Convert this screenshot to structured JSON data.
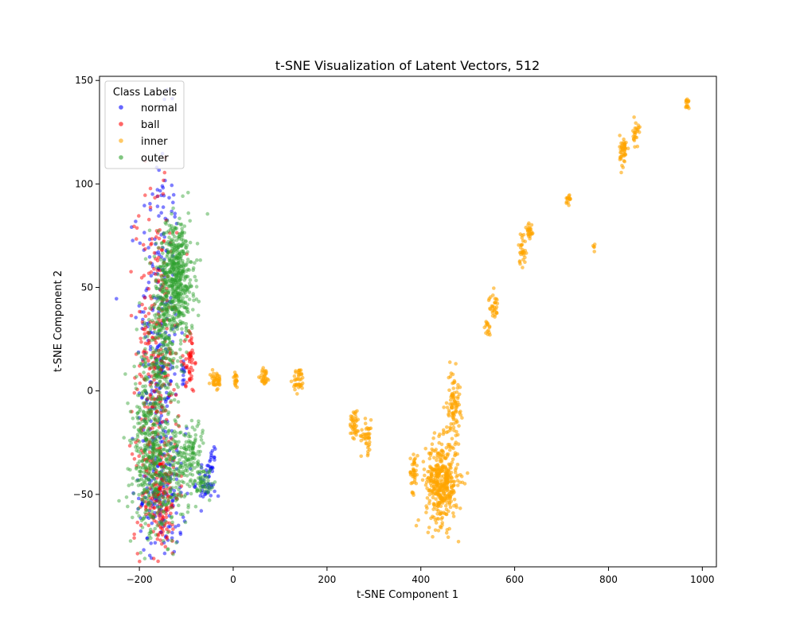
{
  "chart_data": {
    "type": "scatter",
    "title": "t-SNE Visualization of Latent Vectors, 512",
    "xlabel": "t-SNE Component 1",
    "ylabel": "t-SNE Component 2",
    "xlim": [
      -285,
      1030
    ],
    "ylim": [
      -85,
      152
    ],
    "x_ticks": [
      -200,
      0,
      200,
      400,
      600,
      800,
      1000
    ],
    "y_ticks": [
      -50,
      0,
      50,
      100,
      150
    ],
    "grid": false,
    "legend": {
      "title": "Class Labels",
      "placement": "top-left",
      "entries": [
        "normal",
        "ball",
        "inner",
        "outer"
      ]
    },
    "series": [
      {
        "name": "normal",
        "color": "#0000ff",
        "alpha": 0.5,
        "clusters": [
          {
            "x": -160,
            "y": 20,
            "sx": 22,
            "sy": 52,
            "n": 260
          },
          {
            "x": -150,
            "y": -50,
            "sx": 25,
            "sy": 15,
            "n": 130
          },
          {
            "x": -60,
            "y": -44,
            "sx": 10,
            "sy": 6,
            "n": 40
          },
          {
            "x": -45,
            "y": -38,
            "sx": 3,
            "sy": 5,
            "n": 20
          },
          {
            "x": -105,
            "y": 8,
            "sx": 3,
            "sy": 3,
            "n": 12
          },
          {
            "x": -150,
            "y": 11,
            "sx": 4,
            "sy": 2,
            "n": 10
          }
        ]
      },
      {
        "name": "ball",
        "color": "#ff0000",
        "alpha": 0.5,
        "clusters": [
          {
            "x": -165,
            "y": 10,
            "sx": 22,
            "sy": 42,
            "n": 320
          },
          {
            "x": -155,
            "y": -50,
            "sx": 20,
            "sy": 14,
            "n": 150
          },
          {
            "x": -92,
            "y": 15,
            "sx": 5,
            "sy": 8,
            "n": 50
          }
        ]
      },
      {
        "name": "inner",
        "color": "#ffa500",
        "alpha": 0.6,
        "clusters": [
          {
            "x": -37,
            "y": 5,
            "sx": 6,
            "sy": 2.5,
            "n": 40
          },
          {
            "x": 5,
            "y": 5,
            "sx": 3,
            "sy": 2,
            "n": 20
          },
          {
            "x": 67,
            "y": 7,
            "sx": 5,
            "sy": 2,
            "n": 30
          },
          {
            "x": 140,
            "y": 5,
            "sx": 6,
            "sy": 3,
            "n": 40
          },
          {
            "x": 258,
            "y": -15,
            "sx": 5,
            "sy": 4,
            "n": 40
          },
          {
            "x": 285,
            "y": -22,
            "sx": 6,
            "sy": 4,
            "n": 40
          },
          {
            "x": 385,
            "y": -39,
            "sx": 4,
            "sy": 5,
            "n": 40
          },
          {
            "x": 445,
            "y": -44,
            "sx": 17,
            "sy": 10,
            "n": 420
          },
          {
            "x": 470,
            "y": -6,
            "sx": 7,
            "sy": 8,
            "n": 90
          },
          {
            "x": 542,
            "y": 30,
            "sx": 3,
            "sy": 2,
            "n": 15
          },
          {
            "x": 555,
            "y": 41,
            "sx": 5,
            "sy": 3,
            "n": 30
          },
          {
            "x": 616,
            "y": 69,
            "sx": 4,
            "sy": 4,
            "n": 30
          },
          {
            "x": 632,
            "y": 77,
            "sx": 4,
            "sy": 3,
            "n": 25
          },
          {
            "x": 714,
            "y": 92,
            "sx": 3,
            "sy": 2,
            "n": 15
          },
          {
            "x": 768,
            "y": 70,
            "sx": 1.5,
            "sy": 1,
            "n": 5
          },
          {
            "x": 832,
            "y": 116,
            "sx": 4,
            "sy": 4,
            "n": 45
          },
          {
            "x": 858,
            "y": 124,
            "sx": 3,
            "sy": 3,
            "n": 25
          },
          {
            "x": 968,
            "y": 139,
            "sx": 2,
            "sy": 2,
            "n": 15
          }
        ]
      },
      {
        "name": "outer",
        "color": "#2ca02c",
        "alpha": 0.45,
        "clusters": [
          {
            "x": -120,
            "y": 55,
            "sx": 18,
            "sy": 14,
            "n": 500
          },
          {
            "x": -150,
            "y": 25,
            "sx": 18,
            "sy": 22,
            "n": 300
          },
          {
            "x": -185,
            "y": -25,
            "sx": 15,
            "sy": 20,
            "n": 250
          },
          {
            "x": -150,
            "y": -40,
            "sx": 28,
            "sy": 14,
            "n": 350
          },
          {
            "x": -90,
            "y": -30,
            "sx": 15,
            "sy": 8,
            "n": 120
          },
          {
            "x": -60,
            "y": -45,
            "sx": 8,
            "sy": 4,
            "n": 40
          }
        ]
      }
    ]
  }
}
